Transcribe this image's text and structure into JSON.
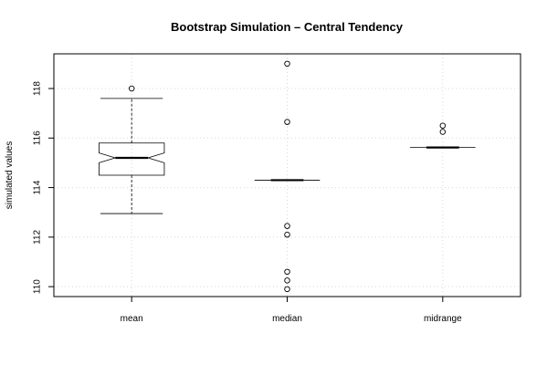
{
  "chart_data": {
    "type": "boxplot",
    "title": "Bootstrap Simulation – Central Tendency",
    "xlabel": "",
    "ylabel": "simulated values",
    "ylim": [
      109.6,
      119.4
    ],
    "yticks": [
      110,
      112,
      114,
      116,
      118
    ],
    "grid": true,
    "notched": true,
    "categories": [
      "mean",
      "median",
      "midrange"
    ],
    "series": [
      {
        "category": "mean",
        "whisker_low": 112.95,
        "q1": 114.5,
        "median": 115.2,
        "q3": 115.8,
        "whisker_high": 117.6,
        "notch_low": 115.0,
        "notch_high": 115.4,
        "outliers": [
          118.0
        ]
      },
      {
        "category": "median",
        "whisker_low": 114.3,
        "q1": 114.3,
        "median": 114.3,
        "q3": 114.3,
        "whisker_high": 114.3,
        "notch_low": 114.3,
        "notch_high": 114.3,
        "outliers": [
          119.0,
          116.65,
          112.45,
          112.1,
          110.6,
          110.25,
          109.9
        ]
      },
      {
        "category": "midrange",
        "whisker_low": 115.62,
        "q1": 115.62,
        "median": 115.62,
        "q3": 115.62,
        "whisker_high": 115.62,
        "notch_low": 115.62,
        "notch_high": 115.62,
        "outliers": [
          116.5,
          116.25
        ]
      }
    ]
  }
}
